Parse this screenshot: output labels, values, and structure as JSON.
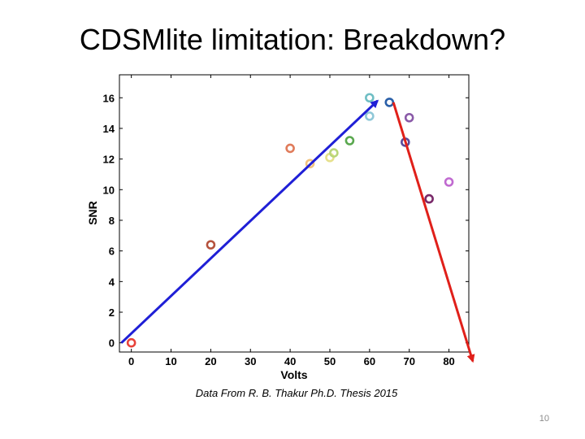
{
  "slide": {
    "title": "CDSMlite limitation: Breakdown?",
    "caption": "Data From R. B. Thakur Ph.D. Thesis 2015",
    "page_number": "10"
  },
  "chart_data": {
    "type": "scatter",
    "title": "",
    "xlabel": "Volts",
    "ylabel": "SNR",
    "xlim": [
      -3,
      85
    ],
    "ylim": [
      -0.6,
      17.5
    ],
    "xticks": [
      0,
      10,
      20,
      30,
      40,
      50,
      60,
      70,
      80
    ],
    "yticks": [
      0,
      2,
      4,
      6,
      8,
      10,
      12,
      14,
      16
    ],
    "grid": false,
    "legend": "none",
    "points": [
      {
        "x": 0,
        "y": 0.0,
        "color": "#e8433a"
      },
      {
        "x": 20,
        "y": 6.4,
        "color": "#b5523d"
      },
      {
        "x": 40,
        "y": 12.7,
        "color": "#e07b5a"
      },
      {
        "x": 45,
        "y": 11.7,
        "color": "#f2c27c"
      },
      {
        "x": 50,
        "y": 12.1,
        "color": "#e6e08c"
      },
      {
        "x": 51,
        "y": 12.4,
        "color": "#b9d67a"
      },
      {
        "x": 55,
        "y": 13.2,
        "color": "#5aa84f"
      },
      {
        "x": 60,
        "y": 16.0,
        "color": "#6fbec4"
      },
      {
        "x": 60,
        "y": 14.8,
        "color": "#8fc8d8"
      },
      {
        "x": 65,
        "y": 15.7,
        "color": "#2a5fa8"
      },
      {
        "x": 70,
        "y": 14.7,
        "color": "#8a5aa8"
      },
      {
        "x": 69,
        "y": 13.1,
        "color": "#5a4a9a"
      },
      {
        "x": 75,
        "y": 9.4,
        "color": "#7a2a6a"
      },
      {
        "x": 80,
        "y": 10.5,
        "color": "#c06ad0"
      }
    ],
    "annotations": [
      {
        "type": "arrow",
        "color": "#1f1fd6",
        "from": [
          -2.5,
          0.0
        ],
        "to": [
          62,
          15.8
        ]
      },
      {
        "type": "arrow",
        "color": "#e0201a",
        "from": [
          66,
          15.7
        ],
        "to": [
          86,
          -1.2
        ]
      }
    ]
  }
}
